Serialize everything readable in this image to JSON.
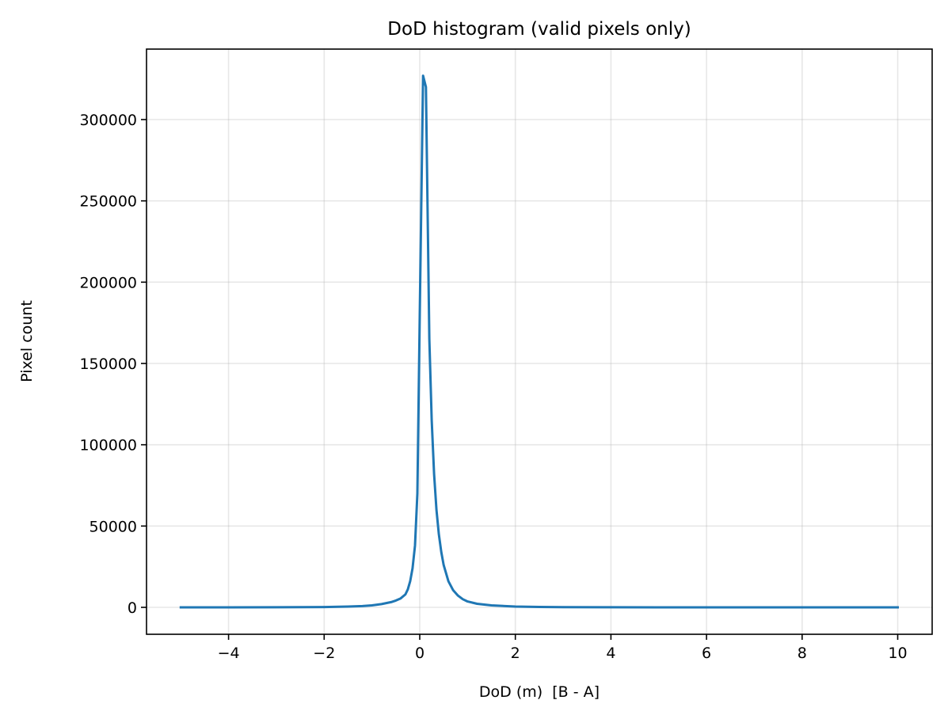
{
  "chart_data": {
    "type": "line",
    "title": "DoD histogram (valid pixels only)",
    "xlabel": "DoD (m)  [B - A]",
    "ylabel": "Pixel count",
    "xlim": [
      -5.75,
      10.75
    ],
    "ylim": [
      -16500,
      343000
    ],
    "grid": true,
    "legend": null,
    "line_color": "#1f77b4",
    "x_ticks": [
      -4,
      -2,
      0,
      2,
      4,
      6,
      8,
      10
    ],
    "x_tick_labels": [
      "−4",
      "−2",
      "0",
      "2",
      "4",
      "6",
      "8",
      "10"
    ],
    "y_ticks": [
      0,
      50000,
      100000,
      150000,
      200000,
      250000,
      300000
    ],
    "y_tick_labels": [
      "0",
      "50000",
      "100000",
      "150000",
      "200000",
      "250000",
      "300000"
    ],
    "series": [
      {
        "name": "DoD histogram",
        "x": [
          -5.0,
          -4.0,
          -3.0,
          -2.5,
          -2.0,
          -1.5,
          -1.2,
          -1.0,
          -0.8,
          -0.6,
          -0.5,
          -0.4,
          -0.3,
          -0.25,
          -0.2,
          -0.15,
          -0.1,
          -0.05,
          0.0,
          0.07,
          0.13,
          0.17,
          0.2,
          0.25,
          0.3,
          0.35,
          0.4,
          0.45,
          0.5,
          0.6,
          0.7,
          0.8,
          0.9,
          1.0,
          1.2,
          1.5,
          2.0,
          2.5,
          3.0,
          4.0,
          5.0,
          6.0,
          8.0,
          10.0
        ],
        "values": [
          0,
          20,
          60,
          120,
          200,
          500,
          800,
          1200,
          2000,
          3200,
          4200,
          5500,
          8000,
          11000,
          16000,
          24000,
          38000,
          70000,
          180000,
          327000,
          320000,
          230000,
          165000,
          115000,
          82000,
          60000,
          45000,
          34000,
          26000,
          16000,
          10500,
          7200,
          5000,
          3600,
          2200,
          1200,
          500,
          250,
          150,
          60,
          20,
          10,
          0,
          0
        ]
      }
    ]
  }
}
